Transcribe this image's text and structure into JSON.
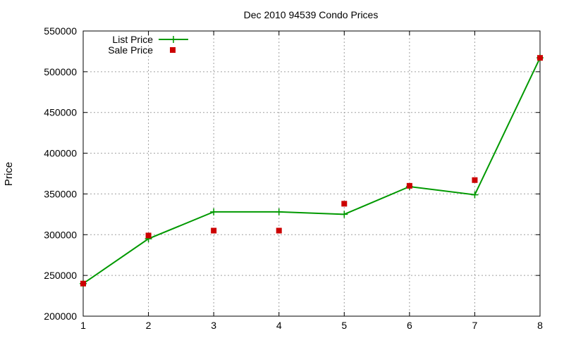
{
  "chart_data": {
    "type": "line",
    "title": "Dec 2010 94539 Condo Prices",
    "xlabel": "",
    "ylabel": "Price",
    "x": [
      1,
      2,
      3,
      4,
      5,
      6,
      7,
      8
    ],
    "xlim": [
      1,
      8
    ],
    "ylim": [
      200000,
      550000
    ],
    "xticks": [
      1,
      2,
      3,
      4,
      5,
      6,
      7,
      8
    ],
    "yticks": [
      200000,
      250000,
      300000,
      350000,
      400000,
      450000,
      500000,
      550000
    ],
    "grid": true,
    "legend_position": "top-left",
    "series": [
      {
        "name": "List Price",
        "style": "line-with-plus-markers",
        "color": "#009900",
        "values": [
          240000,
          295000,
          328000,
          328000,
          325000,
          359000,
          349000,
          517000
        ]
      },
      {
        "name": "Sale Price",
        "style": "square-markers",
        "color": "#cc0000",
        "values": [
          240000,
          299000,
          305000,
          305000,
          338000,
          360000,
          367000,
          517000
        ]
      }
    ]
  }
}
